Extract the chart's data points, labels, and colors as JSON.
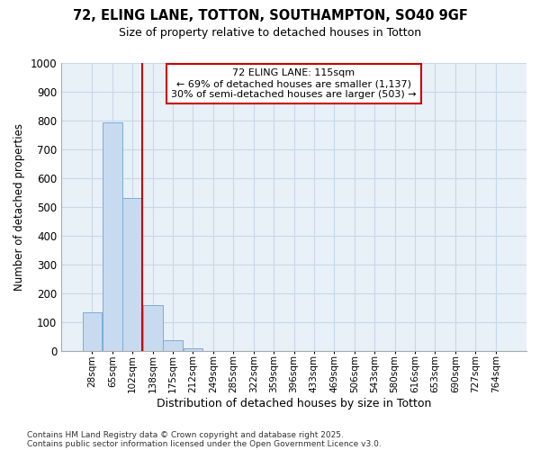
{
  "title_line1": "72, ELING LANE, TOTTON, SOUTHAMPTON, SO40 9GF",
  "title_line2": "Size of property relative to detached houses in Totton",
  "xlabel": "Distribution of detached houses by size in Totton",
  "ylabel": "Number of detached properties",
  "categories": [
    "28sqm",
    "65sqm",
    "102sqm",
    "138sqm",
    "175sqm",
    "212sqm",
    "249sqm",
    "285sqm",
    "322sqm",
    "359sqm",
    "396sqm",
    "433sqm",
    "469sqm",
    "506sqm",
    "543sqm",
    "580sqm",
    "616sqm",
    "653sqm",
    "690sqm",
    "727sqm",
    "764sqm"
  ],
  "values": [
    135,
    795,
    530,
    160,
    38,
    10,
    0,
    0,
    0,
    0,
    0,
    0,
    0,
    0,
    0,
    0,
    0,
    0,
    0,
    0,
    0
  ],
  "bar_color": "#c8daf0",
  "bar_edge_color": "#7aafd4",
  "vline_x": 2.5,
  "vline_color": "#cc0000",
  "annotation_title": "72 ELING LANE: 115sqm",
  "annotation_line1": "← 69% of detached houses are smaller (1,137)",
  "annotation_line2": "30% of semi-detached houses are larger (503) →",
  "annotation_box_edge_color": "#cc0000",
  "annotation_box_facecolor": "#ffffff",
  "ylim": [
    0,
    1000
  ],
  "yticks": [
    0,
    100,
    200,
    300,
    400,
    500,
    600,
    700,
    800,
    900,
    1000
  ],
  "grid_color": "#c8d8e8",
  "background_color": "#ffffff",
  "plot_bg_color": "#e8f0f8",
  "footer_line1": "Contains HM Land Registry data © Crown copyright and database right 2025.",
  "footer_line2": "Contains public sector information licensed under the Open Government Licence v3.0."
}
